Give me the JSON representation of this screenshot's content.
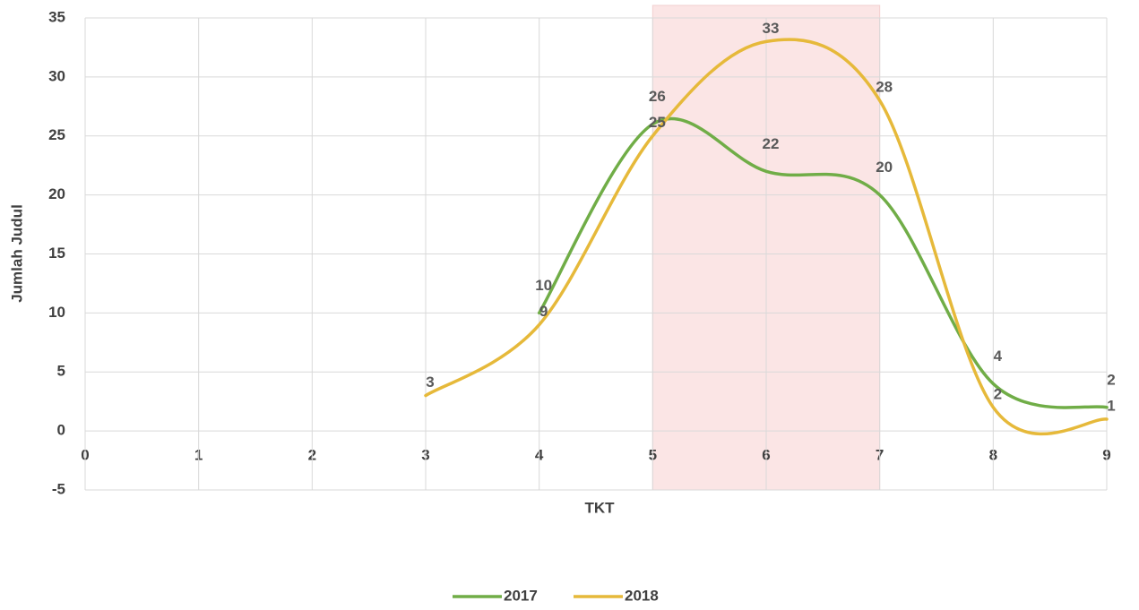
{
  "chart_data": {
    "type": "line",
    "x_label": "TKT",
    "y_label": "Jumlah Judul",
    "xlim": [
      0,
      9
    ],
    "xticks": [
      0,
      1,
      2,
      3,
      4,
      5,
      6,
      7,
      8,
      9
    ],
    "ylim": [
      -5,
      35
    ],
    "yticks": [
      -5,
      0,
      5,
      10,
      15,
      20,
      25,
      30,
      35
    ],
    "grid": true,
    "smooth": true,
    "legend": "bottom",
    "highlight_x": [
      5,
      7
    ],
    "highlight_color": "#fbe5e5",
    "series": [
      {
        "name": "2017",
        "color": "#70ad47",
        "x": [
          4,
          5,
          6,
          7,
          8,
          9
        ],
        "values": [
          10,
          26,
          22,
          20,
          4,
          2
        ]
      },
      {
        "name": "2018",
        "color": "#e6b93a",
        "x": [
          3,
          4,
          5,
          6,
          7,
          8,
          9
        ],
        "values": [
          3,
          9,
          25,
          33,
          28,
          2,
          1
        ]
      }
    ]
  }
}
